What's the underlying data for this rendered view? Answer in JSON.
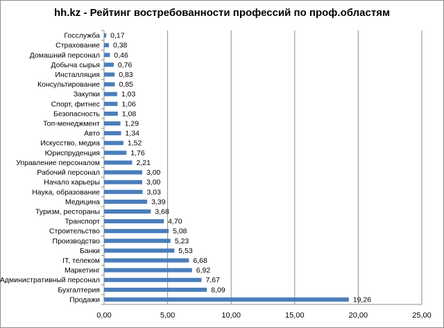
{
  "chart_data": {
    "type": "bar",
    "orientation": "horizontal",
    "title": "hh.kz - Рейтинг востребованности профессий по проф.областям",
    "categories": [
      "Госслужба",
      "Страхование",
      "Домашний персонал",
      "Добыча сырья",
      "Инсталляция",
      "Консультирование",
      "Закупки",
      "Спорт, фитнес",
      "Безопасность",
      "Топ-менеджмент",
      "Авто",
      "Искусство, медиа",
      "Юриспруденция",
      "Управление персоналом",
      "Рабочий персонал",
      "Начало карьеры",
      "Наука, образование",
      "Медицина",
      "Туризм, рестораны",
      "Транспорт",
      "Строительство",
      "Производство",
      "Банки",
      "IT, телеком",
      "Маркетинг",
      "Административный персонал",
      "Бухгалтерия",
      "Продажи"
    ],
    "values": [
      0.17,
      0.38,
      0.46,
      0.76,
      0.83,
      0.85,
      1.03,
      1.06,
      1.08,
      1.29,
      1.34,
      1.52,
      1.76,
      2.21,
      3.0,
      3.0,
      3.03,
      3.39,
      3.68,
      4.7,
      5.08,
      5.23,
      5.53,
      6.68,
      6.92,
      7.67,
      8.09,
      19.26
    ],
    "value_labels": [
      "0,17",
      "0,38",
      "0,46",
      "0,76",
      "0,83",
      "0,85",
      "1,03",
      "1,06",
      "1,08",
      "1,29",
      "1,34",
      "1,52",
      "1,76",
      "2,21",
      "3,00",
      "3,00",
      "3,03",
      "3,39",
      "3,68",
      "4,70",
      "5,08",
      "5,23",
      "5,53",
      "6,68",
      "6,92",
      "7,67",
      "8,09",
      "19,26"
    ],
    "xlim": [
      0,
      25
    ],
    "x_ticks": [
      0,
      5,
      10,
      15,
      20,
      25
    ],
    "x_tick_labels": [
      "0,00",
      "5,00",
      "10,00",
      "15,00",
      "20,00",
      "25,00"
    ],
    "grid": true,
    "legend": "none",
    "bar_color": "#4a7ebb",
    "grid_color": "#8c8c8c"
  }
}
